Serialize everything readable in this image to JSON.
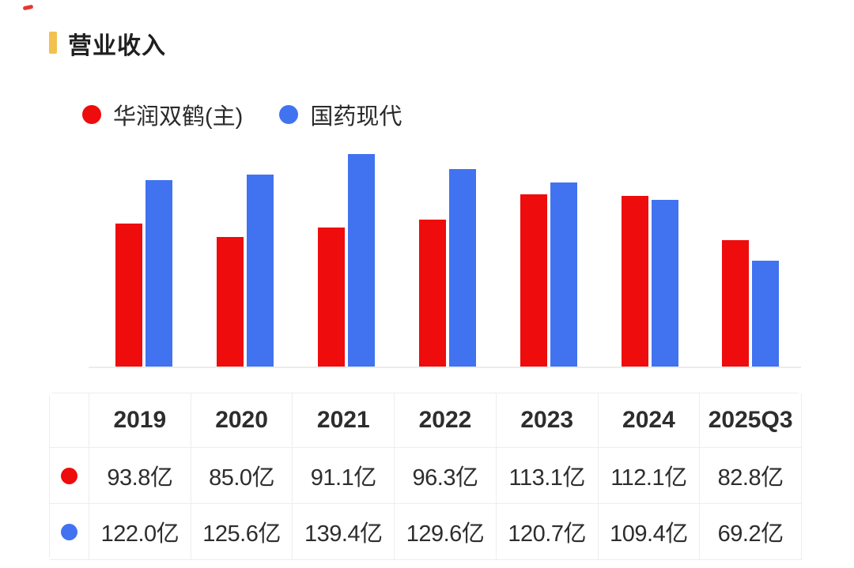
{
  "header": {
    "title": "营业收入",
    "accent_color": "#f2c14e"
  },
  "legend": [
    {
      "label": "华润双鹤(主)",
      "color": "#ee0c0c"
    },
    {
      "label": "国药现代",
      "color": "#4173f0"
    }
  ],
  "chart_data": {
    "type": "bar",
    "title": "营业收入",
    "categories": [
      "2019",
      "2020",
      "2021",
      "2022",
      "2023",
      "2024",
      "2025Q3"
    ],
    "series": [
      {
        "name": "华润双鹤(主)",
        "color": "#ee0c0c",
        "values": [
          93.8,
          85.0,
          91.1,
          96.3,
          113.1,
          112.1,
          82.8
        ]
      },
      {
        "name": "国药现代",
        "color": "#4173f0",
        "values": [
          122.0,
          125.6,
          139.4,
          129.6,
          120.7,
          109.4,
          69.2
        ]
      }
    ],
    "unit": "亿",
    "ylim": [
      0,
      145
    ],
    "grid": false,
    "axis_labels_shown": false,
    "legend_position": "top-left"
  },
  "table": {
    "corner_label": "",
    "columns": [
      "2019",
      "2020",
      "2021",
      "2022",
      "2023",
      "2024",
      "2025Q3"
    ],
    "rows": [
      {
        "series": "华润双鹤(主)",
        "dot_color": "#ee0c0c",
        "values": [
          "93.8亿",
          "85.0亿",
          "91.1亿",
          "96.3亿",
          "113.1亿",
          "112.1亿",
          "82.8亿"
        ]
      },
      {
        "series": "国药现代",
        "dot_color": "#4173f0",
        "values": [
          "122.0亿",
          "125.6亿",
          "139.4亿",
          "129.6亿",
          "120.7亿",
          "109.4亿",
          "69.2亿"
        ]
      }
    ]
  }
}
